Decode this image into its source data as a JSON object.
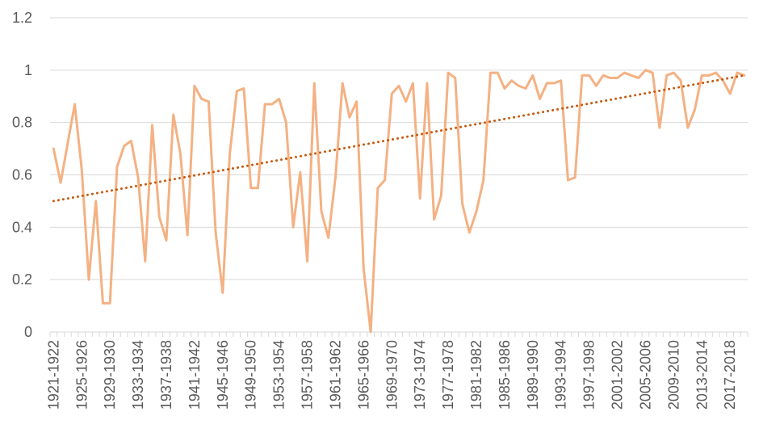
{
  "chart_data": {
    "type": "line",
    "title": "",
    "xlabel": "",
    "ylabel": "",
    "ylim": [
      0,
      1.2
    ],
    "yticks": [
      "0",
      "0.2",
      "0.4",
      "0.6",
      "0.8",
      "1",
      "1.2"
    ],
    "grid": true,
    "legend": "none",
    "x_tick_labels": [
      "1921-1922",
      "1925-1926",
      "1929-1930",
      "1933-1934",
      "1937-1938",
      "1941-1942",
      "1945-1946",
      "1949-1950",
      "1953-1954",
      "1957-1958",
      "1961-1962",
      "1965-1966",
      "1969-1970",
      "1973-1974",
      "1977-1978",
      "1981-1982",
      "1985-1986",
      "1989-1990",
      "1993-1994",
      "1997-1998",
      "2001-2002",
      "2005-2006",
      "2009-2010",
      "2013-2014",
      "2017-2018"
    ],
    "categories": [
      "1921-1922",
      "1922-1923",
      "1923-1924",
      "1924-1925",
      "1925-1926",
      "1926-1927",
      "1927-1928",
      "1928-1929",
      "1929-1930",
      "1930-1931",
      "1931-1932",
      "1932-1933",
      "1933-1934",
      "1934-1935",
      "1935-1936",
      "1936-1937",
      "1937-1938",
      "1938-1939",
      "1939-1940",
      "1940-1941",
      "1941-1942",
      "1942-1943",
      "1943-1944",
      "1944-1945",
      "1945-1946",
      "1946-1947",
      "1947-1948",
      "1948-1949",
      "1949-1950",
      "1950-1951",
      "1951-1952",
      "1952-1953",
      "1953-1954",
      "1954-1955",
      "1955-1956",
      "1956-1957",
      "1957-1958",
      "1958-1959",
      "1959-1960",
      "1960-1961",
      "1961-1962",
      "1962-1963",
      "1963-1964",
      "1964-1965",
      "1965-1966",
      "1966-1967",
      "1967-1968",
      "1968-1969",
      "1969-1970",
      "1970-1971",
      "1971-1972",
      "1972-1973",
      "1973-1974",
      "1974-1975",
      "1975-1976",
      "1976-1977",
      "1977-1978",
      "1978-1979",
      "1979-1980",
      "1980-1981",
      "1981-1982",
      "1982-1983",
      "1983-1984",
      "1984-1985",
      "1985-1986",
      "1986-1987",
      "1987-1988",
      "1988-1989",
      "1989-1990",
      "1990-1991",
      "1991-1992",
      "1992-1993",
      "1993-1994",
      "1994-1995",
      "1995-1996",
      "1996-1997",
      "1997-1998",
      "1998-1999",
      "1999-2000",
      "2000-2001",
      "2001-2002",
      "2002-2003",
      "2003-2004",
      "2004-2005",
      "2005-2006",
      "2006-2007",
      "2007-2008",
      "2008-2009",
      "2009-2010",
      "2010-2011",
      "2011-2012",
      "2012-2013",
      "2013-2014",
      "2014-2015",
      "2015-2016",
      "2016-2017",
      "2017-2018",
      "2018-2019",
      "2019-2020"
    ],
    "series": [
      {
        "values": [
          0.7,
          0.57,
          0.72,
          0.87,
          0.62,
          0.2,
          0.5,
          0.11,
          0.11,
          0.63,
          0.71,
          0.73,
          0.59,
          0.27,
          0.79,
          0.44,
          0.35,
          0.83,
          0.68,
          0.37,
          0.94,
          0.89,
          0.88,
          0.38,
          0.15,
          0.68,
          0.92,
          0.93,
          0.55,
          0.55,
          0.87,
          0.87,
          0.89,
          0.8,
          0.4,
          0.61,
          0.27,
          0.95,
          0.46,
          0.36,
          0.59,
          0.95,
          0.82,
          0.88,
          0.24,
          0.0,
          0.55,
          0.58,
          0.91,
          0.94,
          0.88,
          0.95,
          0.51,
          0.95,
          0.43,
          0.52,
          0.99,
          0.97,
          0.49,
          0.38,
          0.46,
          0.58,
          0.99,
          0.99,
          0.93,
          0.96,
          0.94,
          0.93,
          0.98,
          0.89,
          0.95,
          0.95,
          0.96,
          0.58,
          0.59,
          0.98,
          0.98,
          0.94,
          0.98,
          0.97,
          0.97,
          0.99,
          0.98,
          0.97,
          1.0,
          0.99,
          0.78,
          0.98,
          0.99,
          0.96,
          0.78,
          0.85,
          0.98,
          0.98,
          0.99,
          0.96,
          0.91,
          0.99,
          0.98
        ],
        "color": "#f4b183"
      }
    ],
    "trendline": {
      "style": "dotted",
      "color": "#c55a11",
      "start": 0.5,
      "end": 0.98
    }
  }
}
